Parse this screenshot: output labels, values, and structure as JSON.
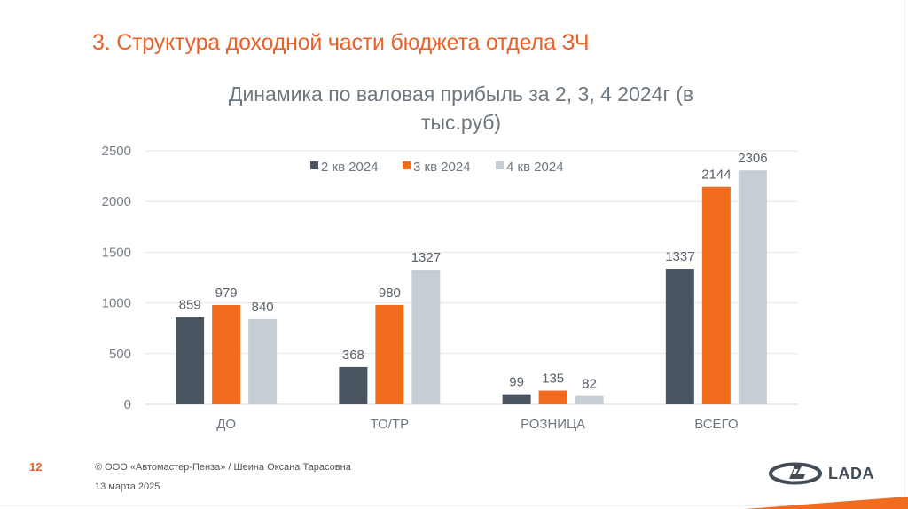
{
  "slide": {
    "title": "3. Структура доходной части бюджета отдела ЗЧ",
    "page_number": "12",
    "footer_copyright": "© ООО «Автомастер-Пенза» / Шеина Оксана Тарасовна",
    "footer_date": "13 марта 2025",
    "logo_text": "LADA",
    "colors": {
      "accent": "#E8622A",
      "text_gray": "#6d7780"
    }
  },
  "chart_data": {
    "type": "bar",
    "title_line1": "Динамика по валовая прибыль за 2, 3, 4 2024г (в",
    "title_line2": "тыс.руб)",
    "categories": [
      "ДО",
      "ТО/ТР",
      "РОЗНИЦА",
      "ВСЕГО"
    ],
    "series": [
      {
        "name": "2 кв 2024",
        "color": "#4a5561",
        "values": [
          859,
          368,
          99,
          1337
        ]
      },
      {
        "name": "3 кв 2024",
        "color": "#F26B1F",
        "values": [
          979,
          980,
          135,
          2144
        ]
      },
      {
        "name": "4 кв 2024",
        "color": "#c5ced4",
        "values": [
          840,
          1327,
          82,
          2306
        ]
      }
    ],
    "yticks": [
      0,
      500,
      1000,
      1500,
      2000,
      2500
    ],
    "ylim": [
      0,
      2500
    ],
    "xlabel": "",
    "ylabel": "",
    "grid": true,
    "legend_position": "top-center",
    "data_labels": true
  }
}
